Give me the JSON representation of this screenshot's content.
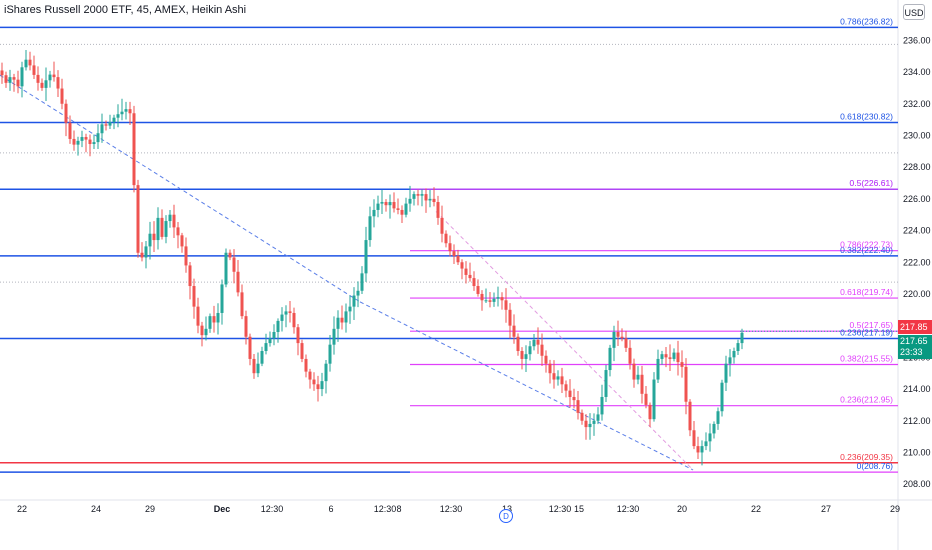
{
  "header": {
    "title": "iShares Russell 2000 ETF, 45, AMEX, Heikin Ashi",
    "currency_button": "USD"
  },
  "event_marker": "D",
  "last_price": {
    "high_tag": "217.85",
    "price_tag": "217.65",
    "countdown": "23:33"
  },
  "colors": {
    "up": "#26a69a",
    "down": "#ef5350",
    "blue_line": "#1e53e5",
    "red_line": "#f23645",
    "magenta_line": "#e040fb",
    "dashed_trend": "#5b7fe8",
    "dashed_trend_2": "#e29ce0",
    "grid_dots": "#b2b5be"
  },
  "chart_data": {
    "type": "candlestick",
    "chart_style": "Heikin Ashi",
    "symbol": "iShares Russell 2000 ETF",
    "interval": "45",
    "exchange": "AMEX",
    "currency": "USD",
    "ylim": [
      207,
      237.6
    ],
    "y_ticks": [
      208,
      210,
      212,
      214,
      216,
      218,
      220,
      222,
      224,
      226,
      228,
      230,
      232,
      234,
      236
    ],
    "x_ticks": [
      "22",
      "24",
      "29",
      "Dec",
      "12:30",
      "6",
      "12:30",
      "8",
      "12:30",
      "13",
      "12:30",
      "15",
      "12:30",
      "20",
      "22",
      "27",
      "29"
    ],
    "fib_levels_major": [
      {
        "label": "0.786(236.82)",
        "value": 236.82
      },
      {
        "label": "0.618(230.82)",
        "value": 230.82
      },
      {
        "label": "0.5(226.61)",
        "value": 226.61
      },
      {
        "label": "0.382(222.40)",
        "value": 222.4
      },
      {
        "label": "0.236(217.19)",
        "value": 217.19
      },
      {
        "label": "0.236(209.35)",
        "value": 209.35
      },
      {
        "label": "0(208.76)",
        "value": 208.76
      }
    ],
    "fib_levels_minor": [
      {
        "label": "0.5(226.61)",
        "value": 226.61
      },
      {
        "label": "0.786(222.73)",
        "value": 222.73
      },
      {
        "label": "0.618(219.74)",
        "value": 219.74
      },
      {
        "label": "0.5(217.65)",
        "value": 217.65
      },
      {
        "label": "0.382(215.55)",
        "value": 215.55
      },
      {
        "label": "0.236(212.95)",
        "value": 212.95
      }
    ],
    "dotted_levels": [
      235.75,
      228.9,
      220.75
    ],
    "close_path": [
      [
        0,
        233.8
      ],
      [
        5,
        233.2
      ],
      [
        10,
        234.0
      ],
      [
        15,
        232.8
      ],
      [
        20,
        234.3
      ],
      [
        25,
        234.9
      ],
      [
        30,
        234.1
      ],
      [
        35,
        233.4
      ],
      [
        40,
        233.0
      ],
      [
        45,
        233.6
      ],
      [
        50,
        234.0
      ],
      [
        55,
        233.2
      ],
      [
        60,
        232.0
      ],
      [
        65,
        230.5
      ],
      [
        70,
        229.3
      ],
      [
        75,
        229.6
      ],
      [
        80,
        229.9
      ],
      [
        85,
        229.7
      ],
      [
        90,
        229.3
      ],
      [
        95,
        230.0
      ],
      [
        100,
        230.7
      ],
      [
        105,
        230.6
      ],
      [
        110,
        231.0
      ],
      [
        115,
        231.3
      ],
      [
        120,
        231.5
      ],
      [
        125,
        231.7
      ],
      [
        128,
        231.4
      ],
      [
        131,
        228.2
      ],
      [
        134,
        224.2
      ],
      [
        137,
        221.8
      ],
      [
        140,
        222.3
      ],
      [
        144,
        223.0
      ],
      [
        148,
        223.8
      ],
      [
        152,
        223.4
      ],
      [
        156,
        224.8
      ],
      [
        160,
        223.6
      ],
      [
        164,
        224.6
      ],
      [
        168,
        225.0
      ],
      [
        172,
        224.2
      ],
      [
        176,
        223.7
      ],
      [
        180,
        223.0
      ],
      [
        184,
        221.8
      ],
      [
        188,
        220.5
      ],
      [
        192,
        219.2
      ],
      [
        196,
        218.0
      ],
      [
        200,
        217.4
      ],
      [
        204,
        217.8
      ],
      [
        208,
        218.6
      ],
      [
        212,
        218.2
      ],
      [
        216,
        218.8
      ],
      [
        220,
        220.6
      ],
      [
        224,
        222.6
      ],
      [
        228,
        222.3
      ],
      [
        232,
        221.4
      ],
      [
        236,
        220.1
      ],
      [
        240,
        218.6
      ],
      [
        244,
        217.3
      ],
      [
        248,
        215.9
      ],
      [
        252,
        215.0
      ],
      [
        256,
        215.6
      ],
      [
        260,
        216.4
      ],
      [
        264,
        216.9
      ],
      [
        268,
        217.2
      ],
      [
        272,
        217.6
      ],
      [
        276,
        218.3
      ],
      [
        280,
        218.7
      ],
      [
        284,
        218.9
      ],
      [
        288,
        218.8
      ],
      [
        292,
        217.9
      ],
      [
        296,
        216.9
      ],
      [
        300,
        215.9
      ],
      [
        304,
        215.1
      ],
      [
        308,
        214.6
      ],
      [
        312,
        214.3
      ],
      [
        316,
        214.0
      ],
      [
        320,
        214.5
      ],
      [
        324,
        215.6
      ],
      [
        328,
        216.8
      ],
      [
        332,
        217.8
      ],
      [
        336,
        218.5
      ],
      [
        340,
        218.2
      ],
      [
        344,
        218.9
      ],
      [
        348,
        219.2
      ],
      [
        352,
        219.9
      ],
      [
        356,
        220.2
      ],
      [
        360,
        221.3
      ],
      [
        364,
        223.4
      ],
      [
        368,
        224.9
      ],
      [
        372,
        225.3
      ],
      [
        376,
        225.7
      ],
      [
        380,
        225.8
      ],
      [
        384,
        225.6
      ],
      [
        388,
        225.8
      ],
      [
        392,
        225.4
      ],
      [
        396,
        225.3
      ],
      [
        400,
        225.0
      ],
      [
        404,
        225.7
      ],
      [
        408,
        226.0
      ],
      [
        412,
        226.3
      ],
      [
        416,
        226.2
      ],
      [
        420,
        226.3
      ],
      [
        424,
        225.9
      ],
      [
        428,
        226.0
      ],
      [
        432,
        225.8
      ],
      [
        436,
        224.8
      ],
      [
        440,
        223.8
      ],
      [
        444,
        223.2
      ],
      [
        448,
        222.7
      ],
      [
        452,
        222.4
      ],
      [
        456,
        222.0
      ],
      [
        460,
        221.6
      ],
      [
        464,
        221.2
      ],
      [
        468,
        221.0
      ],
      [
        472,
        220.5
      ],
      [
        476,
        220.0
      ],
      [
        480,
        219.6
      ],
      [
        484,
        219.6
      ],
      [
        488,
        219.5
      ],
      [
        492,
        219.7
      ],
      [
        496,
        219.8
      ],
      [
        500,
        219.6
      ],
      [
        504,
        219.0
      ],
      [
        508,
        218.0
      ],
      [
        512,
        217.3
      ],
      [
        516,
        216.4
      ],
      [
        520,
        215.9
      ],
      [
        524,
        216.2
      ],
      [
        528,
        216.7
      ],
      [
        532,
        217.1
      ],
      [
        536,
        216.8
      ],
      [
        540,
        216.1
      ],
      [
        544,
        215.6
      ],
      [
        548,
        215.0
      ],
      [
        552,
        214.6
      ],
      [
        556,
        214.8
      ],
      [
        560,
        214.3
      ],
      [
        564,
        213.9
      ],
      [
        568,
        213.5
      ],
      [
        572,
        213.3
      ],
      [
        576,
        212.5
      ],
      [
        580,
        212.0
      ],
      [
        584,
        211.6
      ],
      [
        588,
        211.8
      ],
      [
        592,
        212.0
      ],
      [
        596,
        212.4
      ],
      [
        600,
        213.5
      ],
      [
        604,
        215.2
      ],
      [
        608,
        216.6
      ],
      [
        612,
        217.6
      ],
      [
        616,
        217.3
      ],
      [
        620,
        217.2
      ],
      [
        624,
        216.6
      ],
      [
        628,
        215.6
      ],
      [
        632,
        214.6
      ],
      [
        636,
        214.9
      ],
      [
        640,
        213.7
      ],
      [
        644,
        213.0
      ],
      [
        648,
        212.1
      ],
      [
        652,
        214.6
      ],
      [
        656,
        215.9
      ],
      [
        660,
        216.2
      ],
      [
        664,
        216.0
      ],
      [
        668,
        215.9
      ],
      [
        672,
        216.3
      ],
      [
        676,
        215.7
      ],
      [
        680,
        215.4
      ],
      [
        684,
        213.2
      ],
      [
        688,
        211.4
      ],
      [
        692,
        210.4
      ],
      [
        696,
        210.0
      ],
      [
        700,
        210.4
      ],
      [
        704,
        210.7
      ],
      [
        708,
        211.2
      ],
      [
        712,
        211.8
      ],
      [
        716,
        212.6
      ],
      [
        720,
        214.4
      ],
      [
        724,
        215.6
      ],
      [
        728,
        216.0
      ],
      [
        732,
        216.4
      ],
      [
        736,
        216.9
      ],
      [
        740,
        217.55
      ]
    ],
    "projection_lines": [
      {
        "from": [
          0,
          233.8
        ],
        "to": [
          360,
          219.5
        ],
        "style": "dashed-blue"
      },
      {
        "from": [
          360,
          219.5
        ],
        "to": [
          693,
          208.9
        ],
        "style": "dashed-blue"
      },
      {
        "from": [
          436,
          225.2
        ],
        "to": [
          693,
          208.9
        ],
        "style": "dashed-pink"
      }
    ]
  }
}
